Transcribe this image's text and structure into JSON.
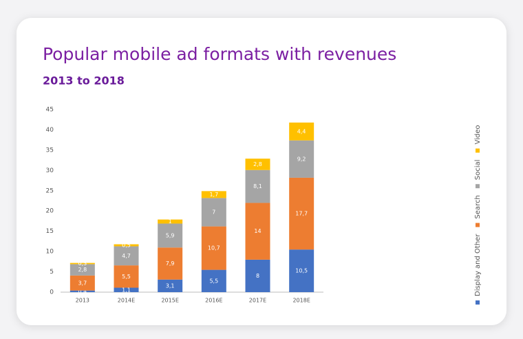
{
  "chart_data": {
    "type": "stacked-bar",
    "title": "Popular mobile ad formats with revenues",
    "subtitle": "2013 to 2018",
    "categories": [
      "2013",
      "2014E",
      "2015E",
      "2016E",
      "2017E",
      "2018E"
    ],
    "series": [
      {
        "name": "Display and Other",
        "color": "#4472c4",
        "values": [
          0.4,
          1.1,
          3.1,
          5.5,
          8,
          10.5
        ],
        "value_labels": [
          "0,4",
          "1,1",
          "3,1",
          "5,5",
          "8",
          "10,5"
        ]
      },
      {
        "name": "Search",
        "color": "#ed7d31",
        "values": [
          3.7,
          5.5,
          7.9,
          10.7,
          14,
          17.7
        ],
        "value_labels": [
          "3,7",
          "5,5",
          "7,9",
          "10,7",
          "14",
          "17,7"
        ]
      },
      {
        "name": "Social",
        "color": "#a5a5a5",
        "values": [
          2.8,
          4.7,
          5.9,
          7,
          8.1,
          9.2
        ],
        "value_labels": [
          "2,8",
          "4,7",
          "5,9",
          "7",
          "8,1",
          "9,2"
        ]
      },
      {
        "name": "Video",
        "color": "#ffc000",
        "values": [
          0.3,
          0.5,
          1,
          1.7,
          2.8,
          4.4
        ],
        "value_labels": [
          "0,3",
          "0,5",
          "1",
          "1,7",
          "2,8",
          "4,4"
        ]
      }
    ],
    "ylim": [
      0,
      45
    ],
    "yticks": [
      0,
      5,
      10,
      15,
      20,
      25,
      30,
      35,
      40,
      45
    ],
    "grid": false,
    "legend": "right"
  }
}
